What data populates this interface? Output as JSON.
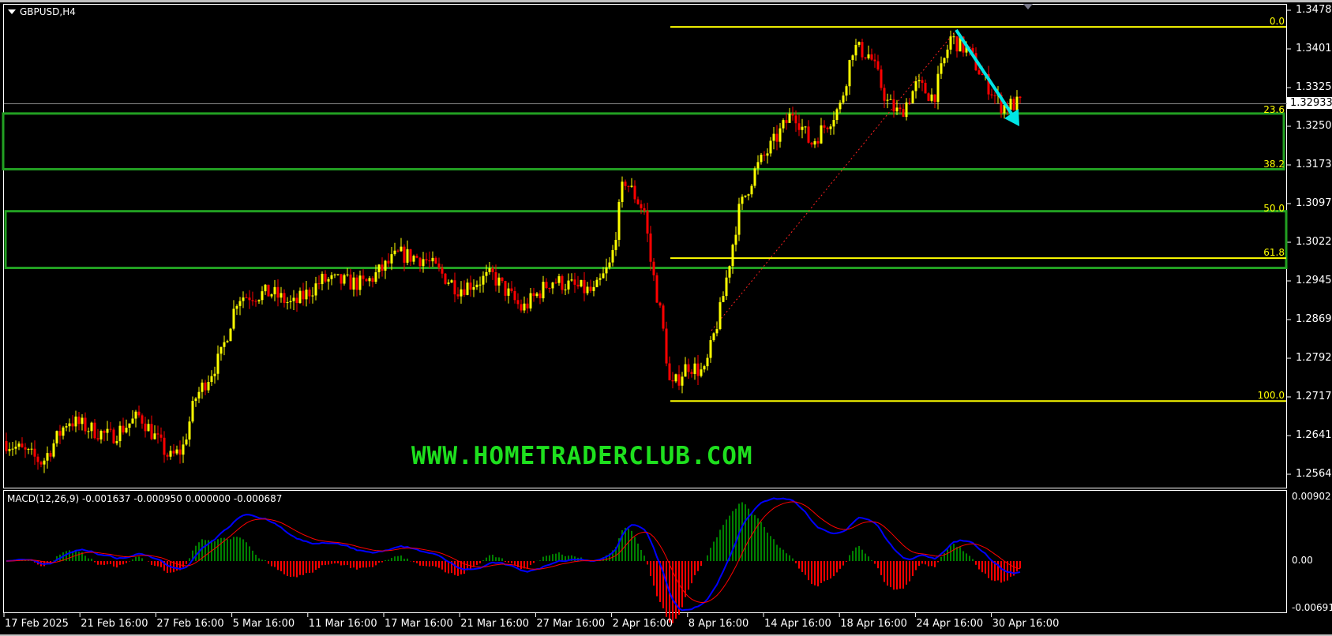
{
  "chart": {
    "symbol_title": "GBPUSD,H4",
    "current_price": "1.32933",
    "watermark": "WWW.HOMETRADERCLUB.COM",
    "price_axis": [
      "1.34780",
      "1.34015",
      "1.33250",
      "1.32500",
      "1.31735",
      "1.30970",
      "1.30220",
      "1.29455",
      "1.28690",
      "1.27925",
      "1.27175",
      "1.26410",
      "1.25645"
    ],
    "time_axis": [
      "17 Feb 2025",
      "21 Feb 16:00",
      "27 Feb 16:00",
      "5 Mar 16:00",
      "11 Mar 16:00",
      "17 Mar 16:00",
      "21 Mar 16:00",
      "27 Mar 16:00",
      "2 Apr 16:00",
      "8 Apr 16:00",
      "14 Apr 16:00",
      "18 Apr 16:00",
      "24 Apr 16:00",
      "30 Apr 16:00"
    ],
    "fibonacci": {
      "levels": [
        "0.0",
        "23.6",
        "38.2",
        "50.0",
        "61.8",
        "100.0"
      ],
      "high_price": 1.3445,
      "low_price": 1.2706,
      "color": "#ffff00"
    },
    "zones": [
      {
        "top": 1.3274,
        "bottom": 1.3164,
        "color": "#22a022"
      },
      {
        "top": 1.3081,
        "bottom": 1.2969,
        "color": "#22a022"
      }
    ],
    "colors": {
      "bull": "#ffff00",
      "bear": "#ff0000",
      "arrow": "#00e5e5",
      "macd_line": "#0000ff",
      "signal_line": "#ff0000",
      "hist_pos": "#008000",
      "hist_neg": "#ff0000"
    },
    "close_path": [
      1.2627,
      1.2585,
      1.2669,
      1.2635,
      1.2677,
      1.2593,
      1.261,
      1.2711,
      1.2794,
      1.2912,
      1.292,
      1.2895,
      1.2945,
      1.2937,
      1.2996,
      1.2987,
      1.2928,
      1.2954,
      1.2887,
      1.2945,
      1.292,
      1.2979,
      1.3146,
      1.3079,
      1.2996,
      1.2862,
      1.2727,
      1.2778,
      1.2761,
      1.2895,
      1.3079,
      1.3163,
      1.3213,
      1.328,
      1.3213,
      1.3289,
      1.3406,
      1.3389,
      1.3297,
      1.3272,
      1.3331,
      1.3306,
      1.3423,
      1.3398,
      1.334,
      1.3289,
      1.3293
    ]
  },
  "macd": {
    "label": "MACD(12,26,9) -0.001637 -0.000950 0.000000 -0.000687",
    "axis": [
      "0.00902",
      "0.00",
      "-0.006915"
    ]
  }
}
